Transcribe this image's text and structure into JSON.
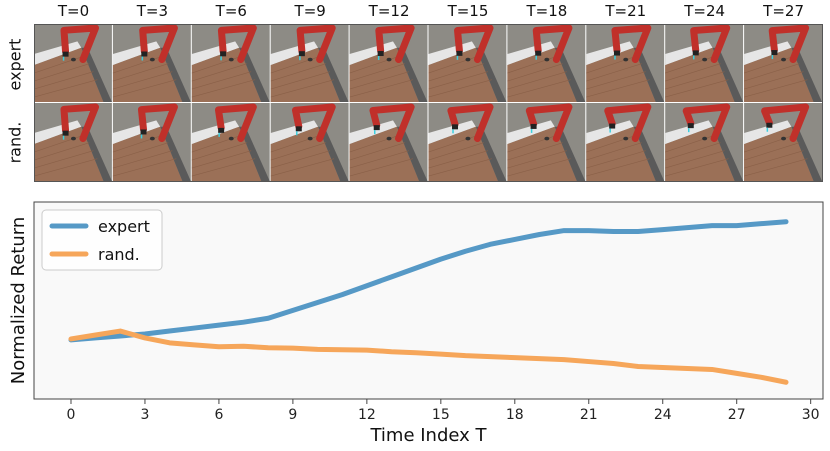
{
  "frames": {
    "time_labels": [
      "T=0",
      "T=3",
      "T=6",
      "T=9",
      "T=12",
      "T=15",
      "T=18",
      "T=21",
      "T=24",
      "T=27"
    ],
    "rows": [
      {
        "label": "expert",
        "arm_progress": [
          0.0,
          0.02,
          0.04,
          0.06,
          0.08,
          0.1,
          0.12,
          0.14,
          0.16,
          0.2
        ]
      },
      {
        "label": "rand.",
        "arm_progress": [
          0.0,
          0.15,
          0.35,
          0.55,
          0.7,
          0.8,
          0.85,
          0.9,
          0.95,
          1.0
        ]
      }
    ]
  },
  "chart_data": {
    "type": "line",
    "xlabel": "Time Index T",
    "ylabel": "Normalized Return",
    "xlim": [
      -1.5,
      30.5
    ],
    "ylim": [
      0,
      1
    ],
    "xticks": [
      0,
      3,
      6,
      9,
      12,
      15,
      18,
      21,
      24,
      27,
      30
    ],
    "x": [
      0,
      1,
      2,
      3,
      4,
      5,
      6,
      7,
      8,
      9,
      10,
      11,
      12,
      13,
      14,
      15,
      16,
      17,
      18,
      19,
      20,
      21,
      22,
      23,
      24,
      25,
      26,
      27,
      28,
      29
    ],
    "series": [
      {
        "name": "expert",
        "color": "#5699c6",
        "values": [
          0.3,
          0.31,
          0.32,
          0.33,
          0.345,
          0.36,
          0.375,
          0.39,
          0.41,
          0.45,
          0.49,
          0.53,
          0.575,
          0.62,
          0.665,
          0.71,
          0.75,
          0.785,
          0.81,
          0.835,
          0.855,
          0.855,
          0.85,
          0.85,
          0.86,
          0.87,
          0.88,
          0.88,
          0.89,
          0.9
        ]
      },
      {
        "name": "rand.",
        "color": "#f6a65a",
        "values": [
          0.305,
          0.325,
          0.345,
          0.31,
          0.285,
          0.275,
          0.265,
          0.268,
          0.26,
          0.258,
          0.252,
          0.25,
          0.248,
          0.24,
          0.235,
          0.228,
          0.22,
          0.215,
          0.21,
          0.205,
          0.2,
          0.19,
          0.18,
          0.165,
          0.16,
          0.155,
          0.15,
          0.13,
          0.11,
          0.085
        ]
      }
    ],
    "legend_position": "upper left",
    "grid": false
  },
  "colors": {
    "plot_background": "#f9f9f9",
    "frame_wall": "#8d8b85",
    "frame_table": "#9b7057",
    "robot_red": "#c0302a"
  }
}
